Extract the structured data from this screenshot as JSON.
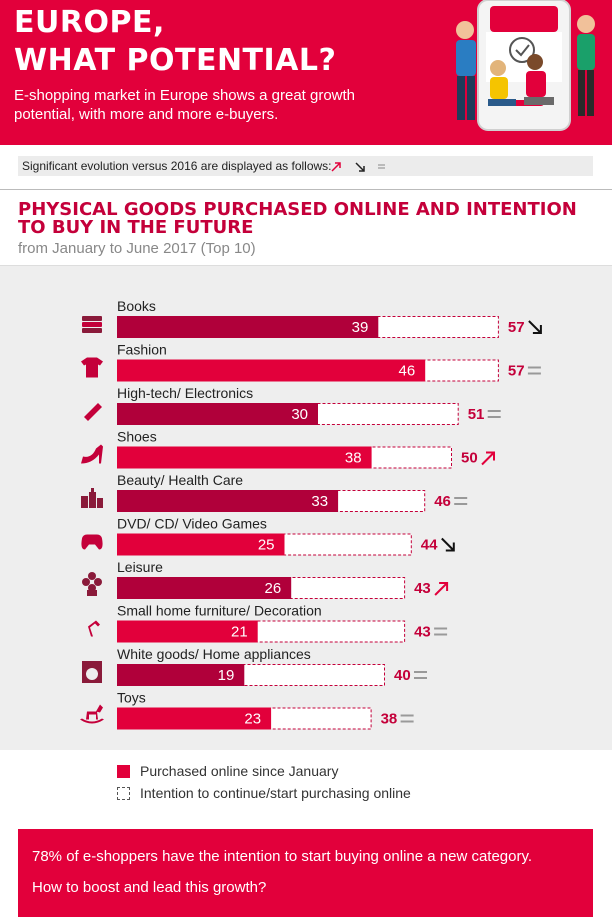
{
  "header": {
    "title_line1": "EUROPE,",
    "title_line2": "WHAT POTENTIAL?",
    "subtitle": "E-shopping market in Europe shows a great growth potential, with more and more e-buyers."
  },
  "evolution_legend": {
    "text": "Significant evolution versus 2016 are displayed as follows:",
    "symbols": [
      "up-arrow-icon",
      "down-arrow-icon",
      "equal-icon"
    ]
  },
  "section": {
    "title": "PHYSICAL GOODS PURCHASED ONLINE AND INTENTION TO BUY IN THE FUTURE",
    "subtitle": "from January to June 2017 (Top 10)"
  },
  "chart_data": {
    "type": "bar",
    "orientation": "horizontal",
    "categories": [
      "Books",
      "Fashion",
      "High-tech/ Electronics",
      "Shoes",
      "Beauty/ Health Care",
      "DVD/ CD/ Video Games",
      "Leisure",
      "Small home furniture/ Decoration",
      "White goods/ Home appliances",
      "Toys"
    ],
    "icons": [
      "books-icon",
      "tshirt-icon",
      "usb-icon",
      "heel-shoe-icon",
      "perfume-icon",
      "gamepad-icon",
      "flower-icon",
      "lamp-icon",
      "washing-machine-icon",
      "rocking-horse-icon"
    ],
    "series": [
      {
        "name": "Purchased online since January",
        "values": [
          39,
          46,
          30,
          38,
          33,
          25,
          26,
          21,
          19,
          23
        ]
      },
      {
        "name": "Intention to continue/start purchasing online",
        "values": [
          57,
          57,
          51,
          50,
          46,
          44,
          43,
          43,
          40,
          38
        ]
      }
    ],
    "evolution": [
      "down",
      "equal",
      "equal",
      "up",
      "equal",
      "down",
      "up",
      "equal",
      "equal",
      "equal"
    ],
    "colors": {
      "purchased_dark": "#b0003a",
      "purchased_light": "#e2003b",
      "intention_border": "#c4003a",
      "equal": "#999999",
      "text": "#c4003a"
    }
  },
  "legend": {
    "purchased": "Purchased online since January",
    "intention": "Intention to continue/start purchasing online"
  },
  "footer": {
    "line1": "78% of e-shoppers have the intention to start buying online a new category.",
    "line2": "How to boost and lead this growth?"
  }
}
